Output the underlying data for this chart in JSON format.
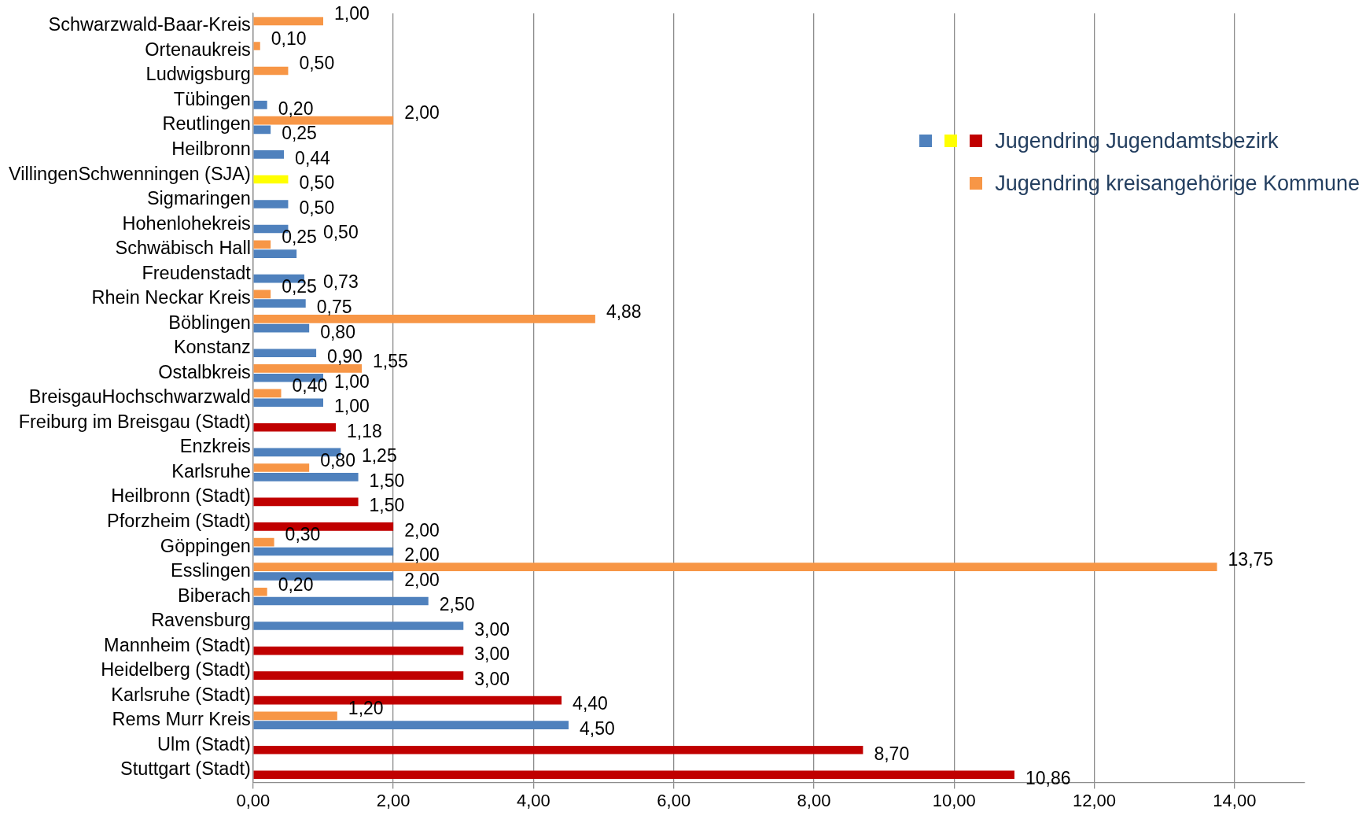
{
  "chart_data": {
    "type": "bar",
    "orientation": "horizontal",
    "categories": [
      "Schwarzwald-Baar-Kreis",
      "Ortenaukreis",
      "Ludwigsburg",
      "Tübingen",
      "Reutlingen",
      "Heilbronn",
      "VillingenSchwenningen (SJA)",
      "Sigmaringen",
      "Hohenlohekreis",
      "Schwäbisch Hall",
      "Freudenstadt",
      "Rhein Neckar Kreis",
      "Böblingen",
      "Konstanz",
      "Ostalbkreis",
      "BreisgauHochschwarzwald",
      "Freiburg im Breisgau (Stadt)",
      "Enzkreis",
      "Karlsruhe",
      "Heilbronn (Stadt)",
      "Pforzheim (Stadt)",
      "Göppingen",
      "Esslingen",
      "Biberach",
      "Ravensburg",
      "Mannheim (Stadt)",
      "Heidelberg (Stadt)",
      "Karlsruhe (Stadt)",
      "Rems Murr Kreis",
      "Ulm (Stadt)",
      "Stuttgart (Stadt)"
    ],
    "series": [
      {
        "name": "Jugendring kreisangehörige Kommune",
        "color": "#f79646",
        "values": [
          1.0,
          0.1,
          0.5,
          null,
          2.0,
          null,
          null,
          null,
          null,
          0.25,
          null,
          0.25,
          4.88,
          null,
          1.55,
          0.4,
          null,
          null,
          0.8,
          null,
          null,
          0.3,
          13.75,
          0.2,
          null,
          null,
          null,
          null,
          1.2,
          null,
          null
        ],
        "value_labels": [
          "1,00",
          "0,10",
          "0,50",
          null,
          "2,00",
          null,
          null,
          null,
          null,
          "0,25",
          null,
          "0,25",
          "4,88",
          null,
          "1,55",
          "0,40",
          null,
          null,
          "0,80",
          null,
          null,
          "0,30",
          "13,75",
          "0,20",
          null,
          null,
          null,
          null,
          "1,20",
          null,
          null
        ]
      },
      {
        "name": "Jugendring Jugendamtsbezirk",
        "colors": [
          "#4f81bd",
          "#4f81bd",
          "#4f81bd",
          "#4f81bd",
          "#4f81bd",
          "#4f81bd",
          "#ffff00",
          "#4f81bd",
          "#4f81bd",
          "#4f81bd",
          "#4f81bd",
          "#4f81bd",
          "#4f81bd",
          "#4f81bd",
          "#4f81bd",
          "#4f81bd",
          "#c00000",
          "#4f81bd",
          "#4f81bd",
          "#c00000",
          "#c00000",
          "#4f81bd",
          "#4f81bd",
          "#4f81bd",
          "#4f81bd",
          "#c00000",
          "#c00000",
          "#c00000",
          "#4f81bd",
          "#c00000",
          "#c00000"
        ],
        "values": [
          null,
          null,
          null,
          0.2,
          0.25,
          0.44,
          0.5,
          0.5,
          0.5,
          0.62,
          0.73,
          0.75,
          0.8,
          0.9,
          1.0,
          1.0,
          1.18,
          1.25,
          1.5,
          1.5,
          2.0,
          2.0,
          2.0,
          2.5,
          3.0,
          3.0,
          3.0,
          4.4,
          4.5,
          8.7,
          10.86
        ],
        "value_labels": [
          null,
          null,
          null,
          "0,20",
          "0,25",
          "0,44",
          "0,50",
          "0,50",
          "0,50",
          null,
          "0,73",
          "0,75",
          "0,80",
          "0,90",
          "1,00",
          "1,00",
          "1,18",
          "1,25",
          "1,50",
          "1,50",
          "2,00",
          "2,00",
          "2,00",
          "2,50",
          "3,00",
          "3,00",
          "3,00",
          "4,40",
          "4,50",
          "8,70",
          "10,86"
        ]
      }
    ],
    "xlim": [
      0,
      15
    ],
    "xticks": [
      {
        "value": 0,
        "label": "0,00"
      },
      {
        "value": 2,
        "label": "2,00"
      },
      {
        "value": 4,
        "label": "4,00"
      },
      {
        "value": 6,
        "label": "6,00"
      },
      {
        "value": 8,
        "label": "8,00"
      },
      {
        "value": 10,
        "label": "10,00"
      },
      {
        "value": 12,
        "label": "12,00"
      },
      {
        "value": 14,
        "label": "14,00"
      }
    ],
    "grid": "x",
    "legend": "top right"
  }
}
